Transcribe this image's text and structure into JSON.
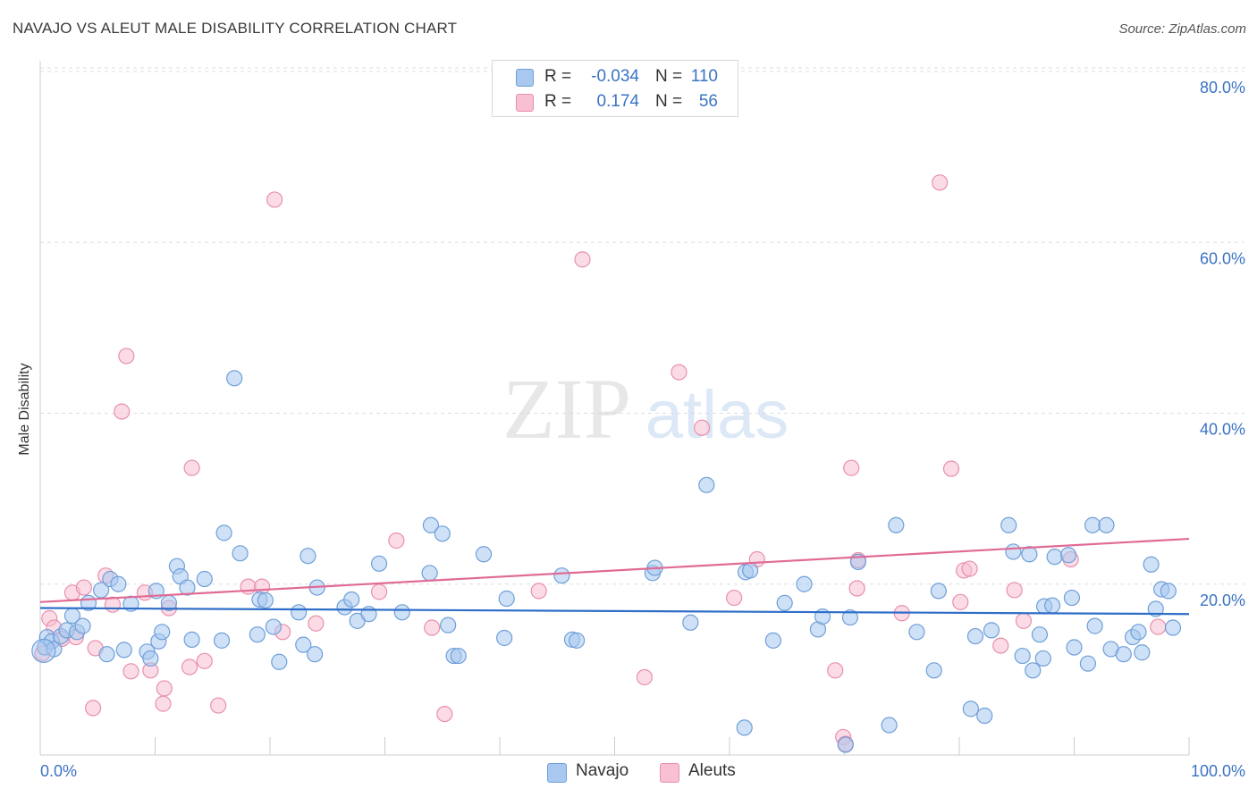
{
  "title": "NAVAJO VS ALEUT MALE DISABILITY CORRELATION CHART",
  "source": "Source: ZipAtlas.com",
  "watermark": {
    "zip": "ZIP",
    "atlas": "atlas"
  },
  "legend_stats": [
    {
      "r_label": "R =",
      "r_value": "-0.034",
      "n_label": "N =",
      "n_value": "110",
      "color": "#a8c8f0",
      "border": "#6f9fd8"
    },
    {
      "r_label": "R =",
      "r_value": "0.174",
      "n_label": "N =",
      "n_value": "56",
      "color": "#f8c0d2",
      "border": "#e890ac"
    }
  ],
  "colors": {
    "navajo_fill": "#a8c8f0",
    "navajo_stroke": "#6f9fd8",
    "navajo_line": "#2f6ec8",
    "aleut_fill": "#f8c0d2",
    "aleut_stroke": "#e890ac",
    "aleut_line": "#e06a94",
    "tick_label": "#3b73c4",
    "grid": "#dddddd"
  },
  "chart_data": {
    "type": "scatter",
    "title": "NAVAJO VS ALEUT MALE DISABILITY CORRELATION CHART",
    "xlabel": "",
    "ylabel": "Male Disability",
    "xlim": [
      0,
      100
    ],
    "ylim": [
      0,
      80
    ],
    "x_tick_labels": [
      "0.0%",
      "100.0%"
    ],
    "y_ticks": [
      20,
      40,
      60,
      80
    ],
    "y_tick_labels": [
      "20.0%",
      "40.0%",
      "60.0%",
      "80.0%"
    ],
    "grid": true,
    "legend": "bottom-center",
    "series": [
      {
        "name": "Navajo",
        "trend": [
          [
            0,
            17.2
          ],
          [
            100,
            16.5
          ]
        ],
        "points": [
          [
            0.4,
            12.6
          ],
          [
            0.6,
            13.8
          ],
          [
            1.0,
            13.3
          ],
          [
            1.2,
            12.4
          ],
          [
            1.8,
            13.9
          ],
          [
            2.3,
            14.6
          ],
          [
            2.8,
            16.3
          ],
          [
            3.2,
            14.4
          ],
          [
            3.7,
            15.1
          ],
          [
            4.2,
            17.8
          ],
          [
            5.3,
            19.3
          ],
          [
            5.8,
            11.8
          ],
          [
            6.1,
            20.6
          ],
          [
            6.8,
            20.0
          ],
          [
            7.3,
            12.3
          ],
          [
            7.9,
            17.7
          ],
          [
            9.3,
            12.1
          ],
          [
            9.6,
            11.3
          ],
          [
            10.1,
            19.2
          ],
          [
            10.3,
            13.3
          ],
          [
            10.6,
            14.4
          ],
          [
            11.2,
            17.8
          ],
          [
            11.9,
            22.1
          ],
          [
            12.2,
            20.9
          ],
          [
            12.8,
            19.6
          ],
          [
            13.2,
            13.5
          ],
          [
            14.3,
            20.6
          ],
          [
            15.8,
            13.4
          ],
          [
            16.0,
            26.0
          ],
          [
            16.9,
            44.1
          ],
          [
            17.4,
            23.6
          ],
          [
            18.9,
            14.1
          ],
          [
            19.1,
            18.2
          ],
          [
            19.6,
            18.1
          ],
          [
            20.3,
            15.0
          ],
          [
            20.8,
            10.9
          ],
          [
            22.5,
            16.7
          ],
          [
            22.9,
            12.9
          ],
          [
            23.3,
            23.3
          ],
          [
            23.9,
            11.8
          ],
          [
            24.1,
            19.6
          ],
          [
            26.5,
            17.3
          ],
          [
            27.1,
            18.2
          ],
          [
            27.6,
            15.7
          ],
          [
            28.6,
            16.5
          ],
          [
            29.5,
            22.4
          ],
          [
            31.5,
            16.7
          ],
          [
            33.9,
            21.3
          ],
          [
            34.0,
            26.9
          ],
          [
            35.0,
            25.9
          ],
          [
            35.5,
            15.2
          ],
          [
            36.0,
            11.6
          ],
          [
            36.4,
            11.6
          ],
          [
            38.6,
            23.5
          ],
          [
            40.4,
            13.7
          ],
          [
            40.6,
            18.3
          ],
          [
            45.4,
            21.0
          ],
          [
            46.3,
            13.5
          ],
          [
            46.7,
            13.4
          ],
          [
            53.3,
            21.3
          ],
          [
            53.5,
            21.9
          ],
          [
            56.6,
            15.5
          ],
          [
            58.0,
            31.6
          ],
          [
            61.3,
            3.2
          ],
          [
            61.4,
            21.4
          ],
          [
            61.8,
            21.6
          ],
          [
            63.8,
            13.4
          ],
          [
            64.8,
            17.8
          ],
          [
            66.5,
            20.0
          ],
          [
            67.7,
            14.7
          ],
          [
            68.1,
            16.2
          ],
          [
            70.1,
            1.2
          ],
          [
            70.5,
            16.1
          ],
          [
            71.2,
            22.6
          ],
          [
            73.9,
            3.5
          ],
          [
            74.5,
            26.9
          ],
          [
            76.3,
            14.4
          ],
          [
            77.8,
            9.9
          ],
          [
            78.2,
            19.2
          ],
          [
            81.0,
            5.4
          ],
          [
            81.4,
            13.9
          ],
          [
            82.2,
            4.6
          ],
          [
            82.8,
            14.6
          ],
          [
            84.3,
            26.9
          ],
          [
            84.7,
            23.8
          ],
          [
            85.5,
            11.6
          ],
          [
            86.1,
            23.5
          ],
          [
            86.4,
            9.9
          ],
          [
            87.0,
            14.1
          ],
          [
            87.3,
            11.3
          ],
          [
            87.4,
            17.4
          ],
          [
            88.1,
            17.5
          ],
          [
            88.3,
            23.2
          ],
          [
            89.5,
            23.4
          ],
          [
            89.8,
            18.4
          ],
          [
            90.0,
            12.6
          ],
          [
            91.2,
            10.7
          ],
          [
            91.6,
            26.9
          ],
          [
            91.8,
            15.1
          ],
          [
            92.8,
            26.9
          ],
          [
            93.2,
            12.4
          ],
          [
            94.3,
            11.8
          ],
          [
            95.1,
            13.8
          ],
          [
            95.6,
            14.4
          ],
          [
            95.9,
            12.0
          ],
          [
            96.7,
            22.3
          ],
          [
            97.1,
            17.1
          ],
          [
            97.6,
            19.4
          ],
          [
            98.2,
            19.2
          ],
          [
            98.6,
            14.9
          ]
        ]
      },
      {
        "name": "Aleuts",
        "trend": [
          [
            0,
            17.9
          ],
          [
            100,
            25.3
          ]
        ],
        "points": [
          [
            0.2,
            11.9
          ],
          [
            0.8,
            16.0
          ],
          [
            1.2,
            14.9
          ],
          [
            1.9,
            13.6
          ],
          [
            2.8,
            19.0
          ],
          [
            3.1,
            13.8
          ],
          [
            3.8,
            19.6
          ],
          [
            4.6,
            5.5
          ],
          [
            4.8,
            12.5
          ],
          [
            5.7,
            21.0
          ],
          [
            6.3,
            17.6
          ],
          [
            7.1,
            40.2
          ],
          [
            7.5,
            46.7
          ],
          [
            7.9,
            9.8
          ],
          [
            9.1,
            19.0
          ],
          [
            9.6,
            9.9
          ],
          [
            10.7,
            6.0
          ],
          [
            10.8,
            7.8
          ],
          [
            11.2,
            17.2
          ],
          [
            13.0,
            10.3
          ],
          [
            13.2,
            33.6
          ],
          [
            14.3,
            11.0
          ],
          [
            15.5,
            5.8
          ],
          [
            18.1,
            19.7
          ],
          [
            19.3,
            19.7
          ],
          [
            20.4,
            65.0
          ],
          [
            21.1,
            14.4
          ],
          [
            24.0,
            15.4
          ],
          [
            29.5,
            19.1
          ],
          [
            31.0,
            25.1
          ],
          [
            34.1,
            14.9
          ],
          [
            35.2,
            4.8
          ],
          [
            43.4,
            19.2
          ],
          [
            47.2,
            58.0
          ],
          [
            52.6,
            9.1
          ],
          [
            55.6,
            44.8
          ],
          [
            57.6,
            38.3
          ],
          [
            60.4,
            18.4
          ],
          [
            62.4,
            22.9
          ],
          [
            69.2,
            9.9
          ],
          [
            69.9,
            2.1
          ],
          [
            70.1,
            1.3
          ],
          [
            70.6,
            33.6
          ],
          [
            71.1,
            19.5
          ],
          [
            71.2,
            22.8
          ],
          [
            75.0,
            16.6
          ],
          [
            78.3,
            67.0
          ],
          [
            79.3,
            33.5
          ],
          [
            80.1,
            17.9
          ],
          [
            80.4,
            21.6
          ],
          [
            80.9,
            21.8
          ],
          [
            83.6,
            12.8
          ],
          [
            84.8,
            19.3
          ],
          [
            85.6,
            15.7
          ],
          [
            89.7,
            22.9
          ],
          [
            97.3,
            15.0
          ]
        ]
      }
    ]
  }
}
